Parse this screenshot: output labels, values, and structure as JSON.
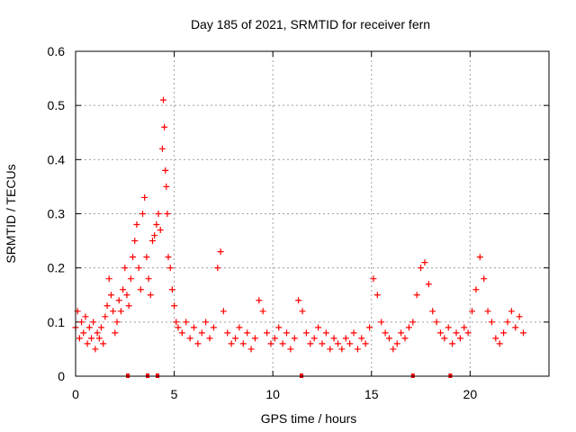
{
  "chart_data": {
    "type": "scatter",
    "title": "Day 185 of 2021, SRMTID for receiver fern",
    "xlabel": "GPS time / hours",
    "ylabel": "SRMTID / TECUs",
    "xlim": [
      0,
      24
    ],
    "ylim": [
      0,
      0.6
    ],
    "xticks": [
      0,
      5,
      10,
      15,
      20
    ],
    "xtick_labels": [
      "0",
      "5",
      "10",
      "15",
      "20"
    ],
    "yticks": [
      0,
      0.1,
      0.2,
      0.3,
      0.4,
      0.5,
      0.6
    ],
    "ytick_labels": [
      "0",
      "0.1",
      "0.2",
      "0.3",
      "0.4",
      "0.5",
      "0.6"
    ],
    "grid": true,
    "marker": "+",
    "color": "#ff0000",
    "series": [
      {
        "name": "SRMTID",
        "x": [
          0.0,
          0.1,
          0.2,
          0.3,
          0.4,
          0.5,
          0.6,
          0.7,
          0.8,
          0.9,
          1.0,
          1.1,
          1.2,
          1.3,
          1.4,
          1.5,
          1.6,
          1.7,
          1.8,
          1.9,
          2.0,
          2.1,
          2.2,
          2.3,
          2.4,
          2.5,
          2.6,
          2.7,
          2.8,
          2.9,
          3.0,
          3.1,
          3.2,
          3.3,
          3.4,
          3.5,
          3.6,
          3.7,
          3.8,
          3.9,
          4.0,
          4.1,
          4.2,
          4.3,
          4.4,
          4.45,
          4.5,
          4.55,
          4.6,
          4.65,
          4.7,
          4.8,
          4.9,
          5.0,
          5.1,
          5.2,
          5.4,
          5.6,
          5.8,
          6.0,
          6.2,
          6.4,
          6.6,
          6.8,
          7.0,
          7.2,
          7.35,
          7.5,
          7.7,
          7.9,
          8.1,
          8.3,
          8.5,
          8.7,
          8.9,
          9.1,
          9.3,
          9.5,
          9.7,
          9.9,
          10.1,
          10.3,
          10.5,
          10.7,
          10.9,
          11.1,
          11.3,
          11.5,
          11.7,
          11.9,
          12.1,
          12.3,
          12.5,
          12.7,
          12.9,
          13.1,
          13.3,
          13.5,
          13.7,
          13.9,
          14.1,
          14.3,
          14.5,
          14.7,
          14.9,
          15.1,
          15.3,
          15.5,
          15.7,
          15.9,
          16.1,
          16.3,
          16.5,
          16.7,
          16.9,
          17.1,
          17.3,
          17.5,
          17.7,
          17.9,
          18.1,
          18.3,
          18.5,
          18.7,
          18.9,
          19.1,
          19.3,
          19.5,
          19.7,
          19.9,
          20.1,
          20.3,
          20.5,
          20.7,
          20.9,
          21.1,
          21.3,
          21.5,
          21.7,
          21.9,
          22.1,
          22.3,
          22.5,
          22.7
        ],
        "values": [
          0.09,
          0.12,
          0.07,
          0.1,
          0.08,
          0.11,
          0.06,
          0.09,
          0.07,
          0.1,
          0.05,
          0.08,
          0.07,
          0.09,
          0.06,
          0.11,
          0.13,
          0.18,
          0.15,
          0.12,
          0.08,
          0.1,
          0.14,
          0.12,
          0.16,
          0.2,
          0.15,
          0.13,
          0.18,
          0.22,
          0.25,
          0.28,
          0.2,
          0.16,
          0.3,
          0.33,
          0.22,
          0.18,
          0.15,
          0.25,
          0.26,
          0.28,
          0.3,
          0.27,
          0.42,
          0.51,
          0.46,
          0.38,
          0.35,
          0.3,
          0.22,
          0.2,
          0.16,
          0.13,
          0.1,
          0.09,
          0.08,
          0.1,
          0.07,
          0.09,
          0.06,
          0.08,
          0.1,
          0.07,
          0.09,
          0.2,
          0.23,
          0.12,
          0.08,
          0.06,
          0.07,
          0.09,
          0.06,
          0.08,
          0.05,
          0.07,
          0.14,
          0.12,
          0.08,
          0.06,
          0.07,
          0.09,
          0.06,
          0.08,
          0.05,
          0.07,
          0.14,
          0.12,
          0.08,
          0.06,
          0.07,
          0.09,
          0.06,
          0.08,
          0.05,
          0.07,
          0.06,
          0.05,
          0.07,
          0.06,
          0.08,
          0.05,
          0.07,
          0.06,
          0.09,
          0.18,
          0.15,
          0.1,
          0.08,
          0.07,
          0.05,
          0.06,
          0.08,
          0.07,
          0.09,
          0.1,
          0.15,
          0.2,
          0.21,
          0.17,
          0.12,
          0.1,
          0.08,
          0.07,
          0.09,
          0.06,
          0.08,
          0.07,
          0.09,
          0.08,
          0.12,
          0.16,
          0.22,
          0.18,
          0.12,
          0.1,
          0.07,
          0.06,
          0.08,
          0.1,
          0.12,
          0.09,
          0.11,
          0.08
        ]
      }
    ],
    "gap_markers_x": [
      2.65,
      3.65,
      4.15,
      11.45,
      17.1,
      19.0
    ]
  }
}
